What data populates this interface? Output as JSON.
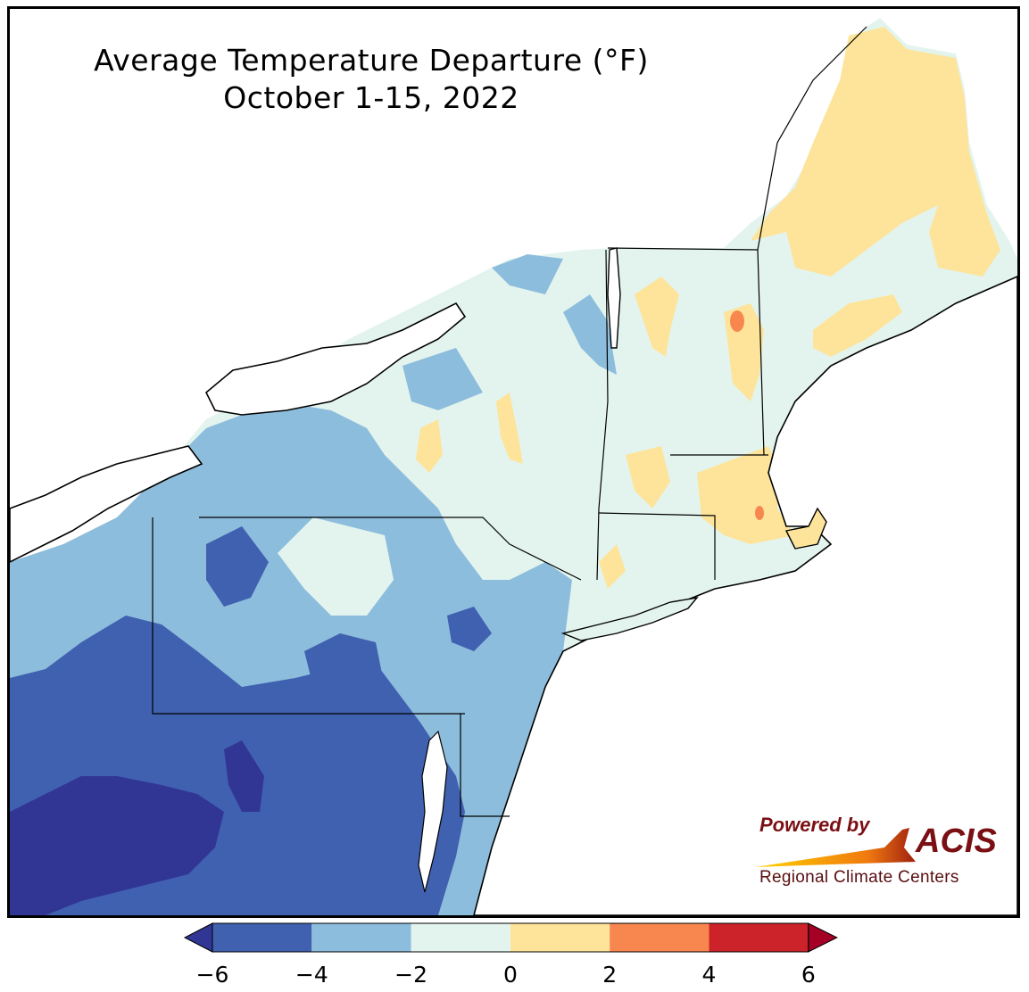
{
  "title": {
    "line1": "Average Temperature Departure (°F)",
    "line2": "October 1-15, 2022"
  },
  "legend": {
    "ticks": [
      "−6",
      "−4",
      "−2",
      "0",
      "2",
      "4",
      "6"
    ],
    "bins": [
      {
        "range": "< -6",
        "color": "#313695"
      },
      {
        "range": "-6 to -4",
        "color": "#4060b0"
      },
      {
        "range": "-4 to -2",
        "color": "#8dbddc"
      },
      {
        "range": "-2 to 0",
        "color": "#e3f4ef"
      },
      {
        "range": "0 to 2",
        "color": "#fde49a"
      },
      {
        "range": "2 to 4",
        "color": "#f7874f"
      },
      {
        "range": "4 to 6",
        "color": "#cc2229"
      },
      {
        "range": "> 6",
        "color": "#a50026"
      }
    ]
  },
  "logo": {
    "powered_by": "Powered by",
    "brand": "ACIS",
    "subtitle": "Regional Climate Centers"
  }
}
